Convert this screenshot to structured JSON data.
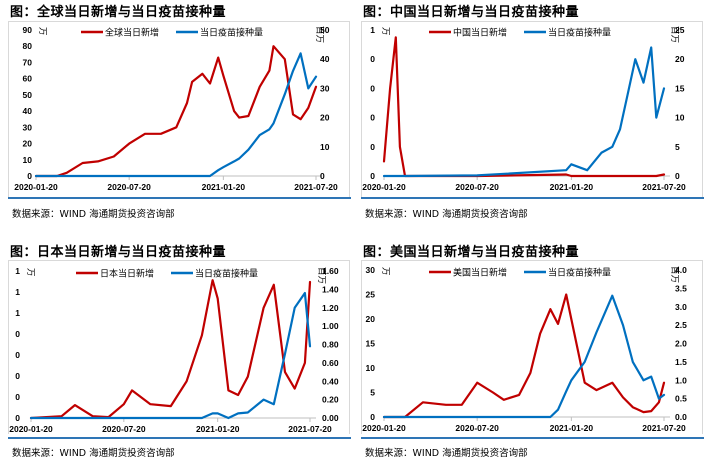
{
  "colors": {
    "red": "#c00000",
    "blue": "#0070c0",
    "divider": "#2e75b6"
  },
  "panels": [
    {
      "title": "图：全球当日新增与当日疫苗接种量",
      "source": "数据来源：WIND   海通期货投资咨询部",
      "left_unit": "万",
      "right_unit": "百万",
      "legend": [
        "全球当日新增",
        "当日疫苗接种量"
      ],
      "left_ticks": [
        "0",
        "10",
        "20",
        "30",
        "40",
        "50",
        "60",
        "70",
        "80",
        "90"
      ],
      "right_ticks": [
        "0",
        "10",
        "20",
        "30",
        "40",
        "50"
      ],
      "x_ticks": [
        "2020-01-20",
        "2020-07-20",
        "2021-01-20",
        "2021-07-20"
      ]
    },
    {
      "title": "图：中国当日新增与当日疫苗接种量",
      "source": "数据来源：WIND   海通期货投资咨询部",
      "left_unit": "万",
      "right_unit": "百万",
      "legend": [
        "中国当日新增",
        "当日疫苗接种量"
      ],
      "left_ticks": [
        "0",
        "0",
        "0",
        "0",
        "0",
        "1"
      ],
      "right_ticks": [
        "0",
        "5",
        "10",
        "15",
        "20",
        "25"
      ],
      "x_ticks": [
        "2020-01-20",
        "2020-07-20",
        "2021-01-20",
        "2021-07-20"
      ]
    },
    {
      "title": "图：日本当日新增与当日疫苗接种量",
      "source": "数据来源：WIND  海通期货投资咨询部",
      "left_unit": "万",
      "right_unit": "百万",
      "legend": [
        "日本当日新增",
        "当日疫苗接种量"
      ],
      "left_ticks": [
        "0",
        "0",
        "0",
        "0",
        "0",
        "1",
        "1",
        "1"
      ],
      "right_ticks": [
        "0.00",
        "0.20",
        "0.40",
        "0.60",
        "0.80",
        "1.00",
        "1.20",
        "1.40",
        "1.60"
      ],
      "x_ticks": [
        "2020-01-20",
        "2020-07-20",
        "2021-01-20",
        "2021-07-20"
      ]
    },
    {
      "title": "图：美国当日新增与当日疫苗接种量",
      "source": "数据来源：WIND   海通期货投资咨询部",
      "left_unit": "万",
      "right_unit": "百万",
      "legend": [
        "美国当日新增",
        "当日疫苗接种量"
      ],
      "left_ticks": [
        "0",
        "5",
        "10",
        "15",
        "20",
        "25",
        "30"
      ],
      "right_ticks": [
        "0.0",
        "0.5",
        "1.0",
        "1.5",
        "2.0",
        "2.5",
        "3.0",
        "3.5",
        "4.0"
      ],
      "x_ticks": [
        "2020-01-20",
        "2020-07-20",
        "2021-01-20",
        "2021-07-20"
      ]
    }
  ],
  "chart_data": [
    {
      "type": "line",
      "title": "图：全球当日新增与当日疫苗接种量",
      "x": [
        "2020-01-20",
        "2020-03-01",
        "2020-03-20",
        "2020-04-20",
        "2020-05-20",
        "2020-06-20",
        "2020-07-20",
        "2020-08-20",
        "2020-09-20",
        "2020-10-20",
        "2020-11-10",
        "2020-11-20",
        "2020-12-10",
        "2020-12-25",
        "2021-01-10",
        "2021-01-20",
        "2021-02-10",
        "2021-02-20",
        "2021-03-10",
        "2021-04-01",
        "2021-04-20",
        "2021-04-28",
        "2021-05-20",
        "2021-06-05",
        "2021-06-20",
        "2021-07-05",
        "2021-07-20"
      ],
      "series": [
        {
          "name": "全球当日新增",
          "axis": "left",
          "unit": "万",
          "values": [
            0,
            0,
            2,
            8,
            9,
            12,
            20,
            26,
            26,
            30,
            45,
            58,
            63,
            57,
            73,
            62,
            40,
            36,
            37,
            55,
            65,
            80,
            72,
            38,
            35,
            42,
            55
          ]
        },
        {
          "name": "当日疫苗接种量",
          "axis": "right",
          "unit": "百万",
          "values": [
            0,
            0,
            0,
            0,
            0,
            0,
            0,
            0,
            0,
            0,
            0,
            0,
            0,
            0,
            2,
            3,
            5,
            6,
            9,
            14,
            16,
            18,
            28,
            36,
            42,
            30,
            34
          ]
        }
      ],
      "ylim_left": [
        0,
        90
      ],
      "ylim_right": [
        0,
        50
      ],
      "xlabel": "",
      "ylabel_left": "万",
      "ylabel_right": "百万",
      "legend_position": "top"
    },
    {
      "type": "line",
      "title": "图：中国当日新增与当日疫苗接种量",
      "x": [
        "2020-01-20",
        "2020-02-01",
        "2020-02-12",
        "2020-02-20",
        "2020-03-01",
        "2020-07-20",
        "2021-01-10",
        "2021-01-20",
        "2021-02-20",
        "2021-03-20",
        "2021-04-10",
        "2021-04-25",
        "2021-05-10",
        "2021-05-25",
        "2021-06-10",
        "2021-06-25",
        "2021-07-05",
        "2021-07-20"
      ],
      "series": [
        {
          "name": "中国当日新增",
          "axis": "left",
          "unit": "万",
          "values": [
            0.1,
            0.6,
            0.95,
            0.2,
            0,
            0,
            0.01,
            0,
            0,
            0,
            0,
            0,
            0,
            0,
            0,
            0,
            0,
            0.01
          ]
        },
        {
          "name": "当日疫苗接种量",
          "axis": "right",
          "unit": "百万",
          "values": [
            0,
            0,
            0,
            0,
            0,
            0.1,
            1,
            2,
            1,
            4,
            5,
            8,
            14,
            20,
            16,
            22,
            10,
            15
          ]
        }
      ],
      "ylim_left": [
        0,
        1
      ],
      "ylim_right": [
        0,
        25
      ],
      "xlabel": "",
      "ylabel_left": "万",
      "ylabel_right": "百万",
      "legend_position": "top"
    },
    {
      "type": "line",
      "title": "图：日本当日新增与当日疫苗接种量",
      "x": [
        "2020-01-20",
        "2020-03-20",
        "2020-04-15",
        "2020-05-20",
        "2020-06-20",
        "2020-07-20",
        "2020-08-05",
        "2020-09-10",
        "2020-10-20",
        "2020-11-20",
        "2020-12-20",
        "2021-01-10",
        "2021-01-20",
        "2021-02-10",
        "2021-03-01",
        "2021-03-20",
        "2021-04-20",
        "2021-05-10",
        "2021-06-01",
        "2021-06-20",
        "2021-07-10",
        "2021-07-20"
      ],
      "series": [
        {
          "name": "日本当日新增",
          "axis": "left",
          "unit": "万",
          "values": [
            0,
            0.02,
            0.14,
            0.02,
            0.01,
            0.15,
            0.3,
            0.15,
            0.13,
            0.4,
            0.9,
            1.5,
            1.3,
            0.3,
            0.25,
            0.45,
            1.2,
            1.45,
            0.5,
            0.32,
            0.6,
            1.48
          ]
        },
        {
          "name": "当日疫苗接种量",
          "axis": "right",
          "unit": "百万",
          "values": [
            0,
            0,
            0,
            0,
            0,
            0,
            0,
            0,
            0,
            0,
            0,
            0.05,
            0.05,
            0,
            0.05,
            0.06,
            0.2,
            0.15,
            0.7,
            1.2,
            1.36,
            0.78
          ]
        }
      ],
      "ylim_left": [
        0,
        1.6
      ],
      "ylim_right": [
        0,
        1.6
      ],
      "xlabel": "",
      "ylabel_left": "万",
      "ylabel_right": "百万",
      "legend_position": "top"
    },
    {
      "type": "line",
      "title": "图：美国当日新增与当日疫苗接种量",
      "x": [
        "2020-01-20",
        "2020-03-01",
        "2020-04-05",
        "2020-05-20",
        "2020-06-20",
        "2020-07-20",
        "2020-08-20",
        "2020-09-10",
        "2020-10-10",
        "2020-11-01",
        "2020-11-20",
        "2020-12-10",
        "2020-12-25",
        "2021-01-10",
        "2021-01-20",
        "2021-02-15",
        "2021-03-10",
        "2021-04-10",
        "2021-05-01",
        "2021-05-20",
        "2021-06-10",
        "2021-06-25",
        "2021-07-10",
        "2021-07-20"
      ],
      "series": [
        {
          "name": "美国当日新增",
          "axis": "left",
          "unit": "万",
          "values": [
            0,
            0,
            3,
            2.5,
            2.5,
            7,
            5,
            3.5,
            4.5,
            9,
            17,
            22,
            19,
            25,
            20,
            7,
            5.5,
            7,
            4,
            2,
            1,
            1.2,
            3,
            7
          ]
        },
        {
          "name": "当日疫苗接种量",
          "axis": "right",
          "unit": "百万",
          "values": [
            0,
            0,
            0,
            0,
            0,
            0,
            0,
            0,
            0,
            0,
            0,
            0,
            0.2,
            0.7,
            1.0,
            1.5,
            2.3,
            3.3,
            2.5,
            1.5,
            1.0,
            1.1,
            0.5,
            0.6
          ]
        }
      ],
      "ylim_left": [
        0,
        30
      ],
      "ylim_right": [
        0,
        4
      ],
      "xlabel": "",
      "ylabel_left": "万",
      "ylabel_right": "百万",
      "legend_position": "top"
    }
  ]
}
